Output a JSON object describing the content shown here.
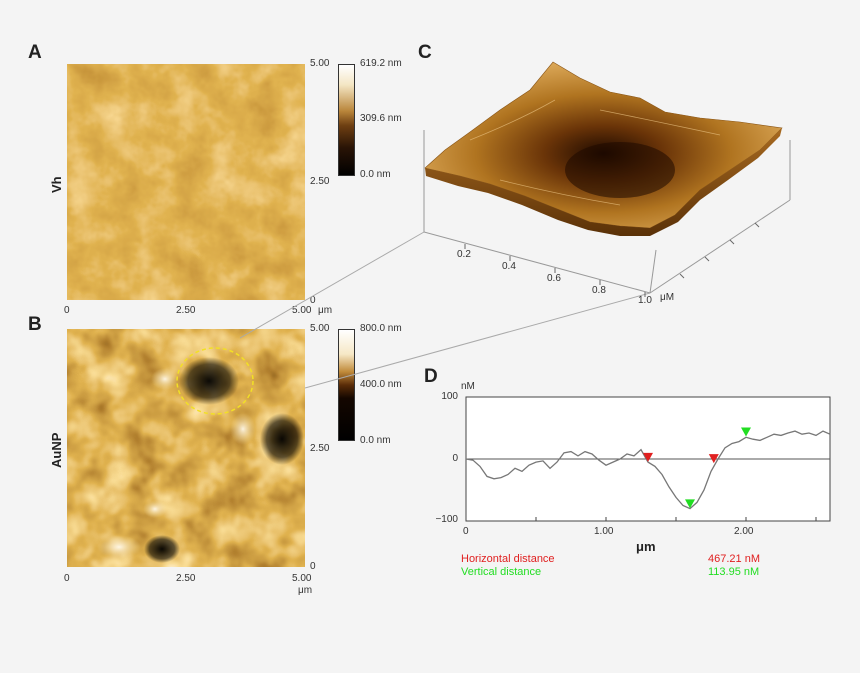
{
  "panels": {
    "a": {
      "letter": "A",
      "row_label": "Vh",
      "yticks": [
        "5.00",
        "2.50",
        "0"
      ],
      "xticks": [
        "0",
        "2.50",
        "5.00"
      ],
      "unit": "μm",
      "colorbar": [
        "619.2 nm",
        "309.6 nm",
        "0.0 nm"
      ]
    },
    "b": {
      "letter": "B",
      "row_label": "AuNP",
      "yticks": [
        "5.00",
        "2.50",
        "0"
      ],
      "xticks": [
        "0",
        "2.50",
        "5.00"
      ],
      "unit": "μm",
      "colorbar": [
        "800.0 nm",
        "400.0 nm",
        "0.0 nm"
      ]
    },
    "c": {
      "letter": "C",
      "axis_ticks": [
        "0.2",
        "0.4",
        "0.6",
        "0.8",
        "1.0"
      ],
      "axis_unit": "μM"
    },
    "d": {
      "letter": "D",
      "y_unit": "nM",
      "yticks": [
        "100",
        "0",
        "−100"
      ],
      "xticks": [
        "0",
        "1.00",
        "2.00"
      ],
      "xlabel": "μm",
      "measurements": [
        {
          "label": "Horizontal distance",
          "value": "467.21 nM",
          "color": "#e02020"
        },
        {
          "label": "Vertical distance",
          "value": "113.95 nM",
          "color": "#22dd22"
        }
      ]
    }
  },
  "chart_data": {
    "type": "line",
    "title": "",
    "xlabel": "μm",
    "ylabel": "nM",
    "xlim": [
      0,
      2.6
    ],
    "ylim": [
      -100,
      100
    ],
    "series": [
      {
        "x": [
          0,
          0.05,
          0.1,
          0.15,
          0.2,
          0.25,
          0.3,
          0.35,
          0.4,
          0.45,
          0.5,
          0.55,
          0.6,
          0.65,
          0.7,
          0.75,
          0.8,
          0.85,
          0.9,
          0.95,
          1.0,
          1.05,
          1.1,
          1.15,
          1.2,
          1.25,
          1.3,
          1.35,
          1.4,
          1.45,
          1.5,
          1.55,
          1.6,
          1.65,
          1.7,
          1.75,
          1.8,
          1.85,
          1.9,
          1.95,
          2.0,
          2.05,
          2.1,
          2.15,
          2.2,
          2.25,
          2.3,
          2.35,
          2.4,
          2.45,
          2.5,
          2.55,
          2.6
        ],
        "y": [
          0,
          -2,
          -12,
          -28,
          -32,
          -30,
          -25,
          -15,
          -20,
          -10,
          -5,
          -3,
          -15,
          -5,
          10,
          12,
          5,
          12,
          8,
          -2,
          -10,
          -5,
          0,
          8,
          5,
          15,
          -5,
          -12,
          -25,
          -45,
          -62,
          -75,
          -80,
          -70,
          -50,
          -20,
          0,
          18,
          25,
          28,
          35,
          32,
          30,
          35,
          40,
          38,
          42,
          45,
          40,
          42,
          38,
          45,
          40
        ]
      }
    ],
    "markers": {
      "red": [
        [
          1.3,
          -3
        ],
        [
          1.77,
          -5
        ]
      ],
      "green": [
        [
          1.6,
          -78
        ],
        [
          2.0,
          38
        ]
      ]
    }
  }
}
